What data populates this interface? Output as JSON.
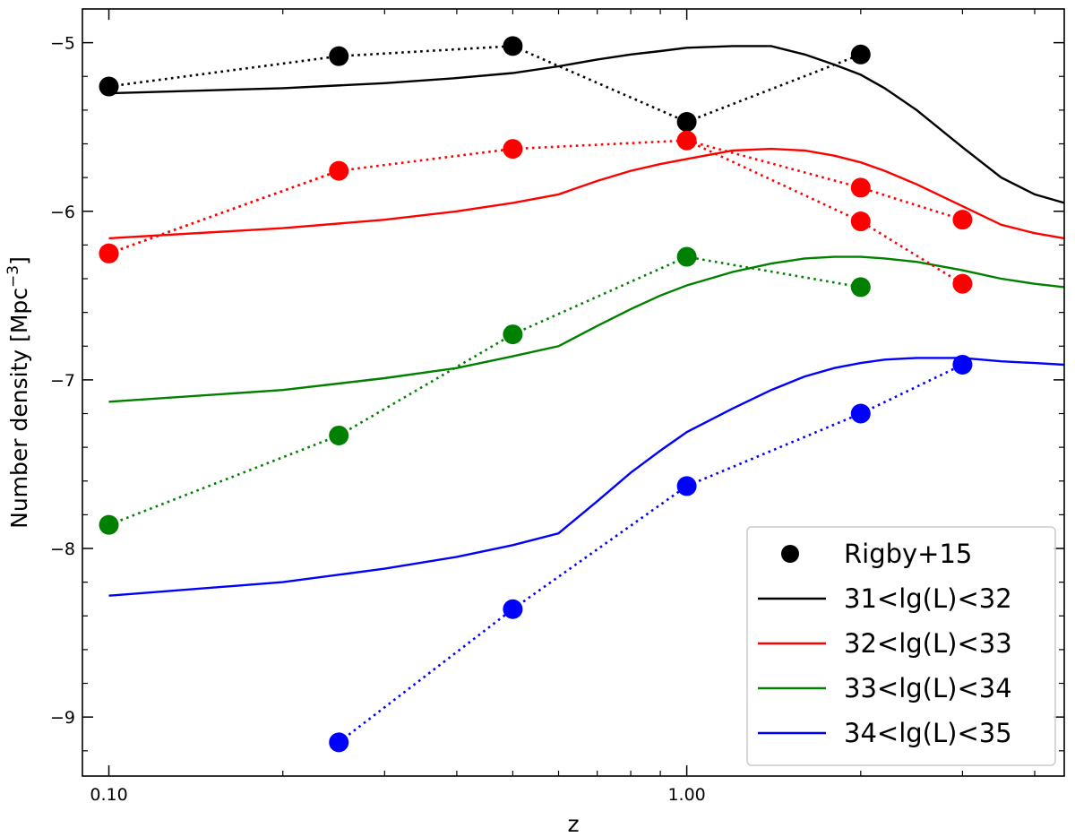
{
  "chart_data": {
    "type": "line",
    "xscale": "log",
    "xlim": [
      0.09,
      4.5
    ],
    "ylim": [
      -9.35,
      -4.8
    ],
    "xlabel": "z",
    "ylabel": "Number density [Mpc",
    "ylabel_sup": "−3",
    "ylabel_close": "]",
    "x_tick_labels": [
      "0.10",
      "1.00"
    ],
    "y_tick_labels": [
      "−5",
      "−6",
      "−7",
      "−8",
      "−9"
    ],
    "legend_position": "lower-right",
    "colors": {
      "black": "#000000",
      "red": "#ff0000",
      "green": "#008000",
      "blue": "#0000ff"
    },
    "model_x": [
      0.1,
      0.2,
      0.3,
      0.4,
      0.5,
      0.6,
      0.7,
      0.8,
      0.9,
      1.0,
      1.2,
      1.4,
      1.6,
      1.8,
      2.0,
      2.2,
      2.5,
      3.0,
      3.5,
      4.0,
      4.5
    ],
    "series": [
      {
        "name": "31<lg(L)<32",
        "color": "#000000",
        "model_y": [
          -5.3,
          -5.27,
          -5.24,
          -5.21,
          -5.18,
          -5.14,
          -5.1,
          -5.07,
          -5.05,
          -5.03,
          -5.02,
          -5.02,
          -5.07,
          -5.13,
          -5.19,
          -5.27,
          -5.4,
          -5.62,
          -5.8,
          -5.9,
          -5.95
        ],
        "obs_x": [
          0.1,
          0.25,
          0.5,
          1.0,
          2.0
        ],
        "obs_y": [
          -5.26,
          -5.08,
          -5.02,
          -5.47,
          -5.07
        ]
      },
      {
        "name": "32<lg(L)<33",
        "color": "#ff0000",
        "model_y": [
          -6.16,
          -6.1,
          -6.05,
          -6.0,
          -5.95,
          -5.9,
          -5.82,
          -5.76,
          -5.72,
          -5.69,
          -5.64,
          -5.63,
          -5.64,
          -5.67,
          -5.71,
          -5.76,
          -5.84,
          -5.97,
          -6.08,
          -6.13,
          -6.16
        ],
        "obs_x": [
          0.1,
          0.25,
          0.5,
          1.0,
          2.0,
          3.0
        ],
        "obs_y": [
          -6.25,
          -5.76,
          -5.63,
          -5.58,
          -5.86,
          -6.05
        ]
      },
      {
        "name": "33<lg(L)<34",
        "color": "#008000",
        "model_y": [
          -7.13,
          -7.06,
          -6.99,
          -6.93,
          -6.86,
          -6.8,
          -6.68,
          -6.58,
          -6.5,
          -6.44,
          -6.36,
          -6.31,
          -6.28,
          -6.27,
          -6.27,
          -6.28,
          -6.3,
          -6.35,
          -6.4,
          -6.43,
          -6.45
        ],
        "obs_x": [
          0.25,
          0.5,
          1.0,
          2.0
        ],
        "obs_y": [
          -7.33,
          -6.73,
          -6.27,
          -6.45
        ]
      },
      {
        "name": "34<lg(L)<35",
        "color": "#0000ff",
        "model_y": [
          -8.28,
          -8.2,
          -8.12,
          -8.05,
          -7.98,
          -7.91,
          -7.72,
          -7.55,
          -7.42,
          -7.31,
          -7.17,
          -7.06,
          -6.98,
          -6.93,
          -6.9,
          -6.88,
          -6.87,
          -6.87,
          -6.89,
          -6.9,
          -6.91
        ],
        "obs_x": [
          0.25,
          0.5,
          1.0,
          2.0,
          3.0
        ],
        "obs_y": [
          -9.15,
          -8.36,
          -7.63,
          -7.2,
          -6.91
        ]
      }
    ],
    "extra_points": [
      {
        "color": "#ff0000",
        "x": [
          0.1
        ],
        "y": [
          -6.25
        ],
        "note": ""
      },
      {
        "color": "#ff0000",
        "x": [
          2.0,
          3.0
        ],
        "y": [
          -6.06,
          -6.43
        ],
        "linked_from_x": 1.0,
        "linked_from_y": -5.58
      },
      {
        "color": "#008000",
        "x": [
          0.1
        ],
        "y": [
          -7.86
        ],
        "linked_to_x": 0.25,
        "linked_to_y": -7.33
      }
    ],
    "legend": [
      {
        "label": "Rigby+15",
        "kind": "marker",
        "color": "#000000"
      },
      {
        "label": "31<lg(L)<32",
        "kind": "line",
        "color": "#000000"
      },
      {
        "label": "32<lg(L)<33",
        "kind": "line",
        "color": "#ff0000"
      },
      {
        "label": "33<lg(L)<34",
        "kind": "line",
        "color": "#008000"
      },
      {
        "label": "34<lg(L)<35",
        "kind": "line",
        "color": "#0000ff"
      }
    ]
  }
}
